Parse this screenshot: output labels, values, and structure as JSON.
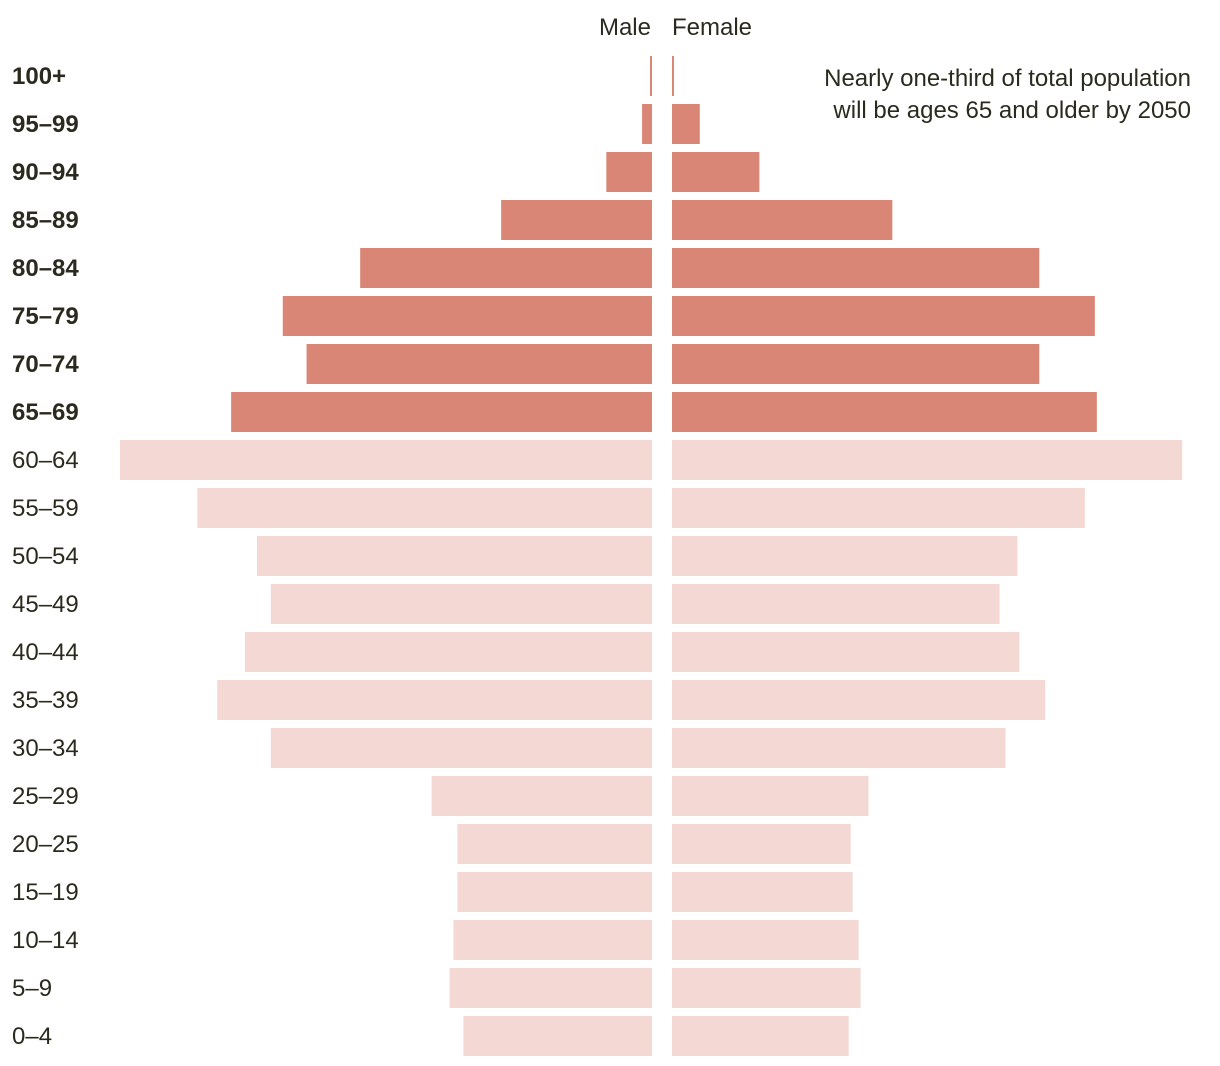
{
  "chart_data": {
    "type": "bar",
    "orientation": "horizontal",
    "layout": "population-pyramid",
    "legend_placement": "top-center",
    "categories": [
      "100+",
      "95–99",
      "90–94",
      "85–89",
      "80–84",
      "75–79",
      "70–74",
      "65–69",
      "60–64",
      "55–59",
      "50–54",
      "45–49",
      "40–44",
      "35–39",
      "30–34",
      "25–29",
      "20–25",
      "15–19",
      "10–14",
      "5–9",
      "0–4"
    ],
    "highlighted_categories": [
      "100+",
      "95–99",
      "90–94",
      "85–89",
      "80–84",
      "75–79",
      "70–74",
      "65–69"
    ],
    "series": [
      {
        "name": "Male",
        "values": [
          0.01,
          0.05,
          0.23,
          0.76,
          1.47,
          1.86,
          1.74,
          2.12,
          2.68,
          2.29,
          1.99,
          1.92,
          2.05,
          2.19,
          1.92,
          1.11,
          0.98,
          0.98,
          1.0,
          1.02,
          0.95
        ]
      },
      {
        "name": "Female",
        "values": [
          0.01,
          0.14,
          0.44,
          1.11,
          1.85,
          2.13,
          1.85,
          2.14,
          2.57,
          2.08,
          1.74,
          1.65,
          1.75,
          1.88,
          1.68,
          0.99,
          0.9,
          0.91,
          0.94,
          0.95,
          0.89
        ]
      }
    ],
    "xlim": [
      0,
      2.7
    ],
    "annotation": [
      "Nearly one-third of total population",
      "will be ages 65 and older by 2050"
    ],
    "grid": false,
    "colors": {
      "highlight": "#d98676",
      "base": "#f3d8d3",
      "text": "#2b2a1f"
    }
  }
}
